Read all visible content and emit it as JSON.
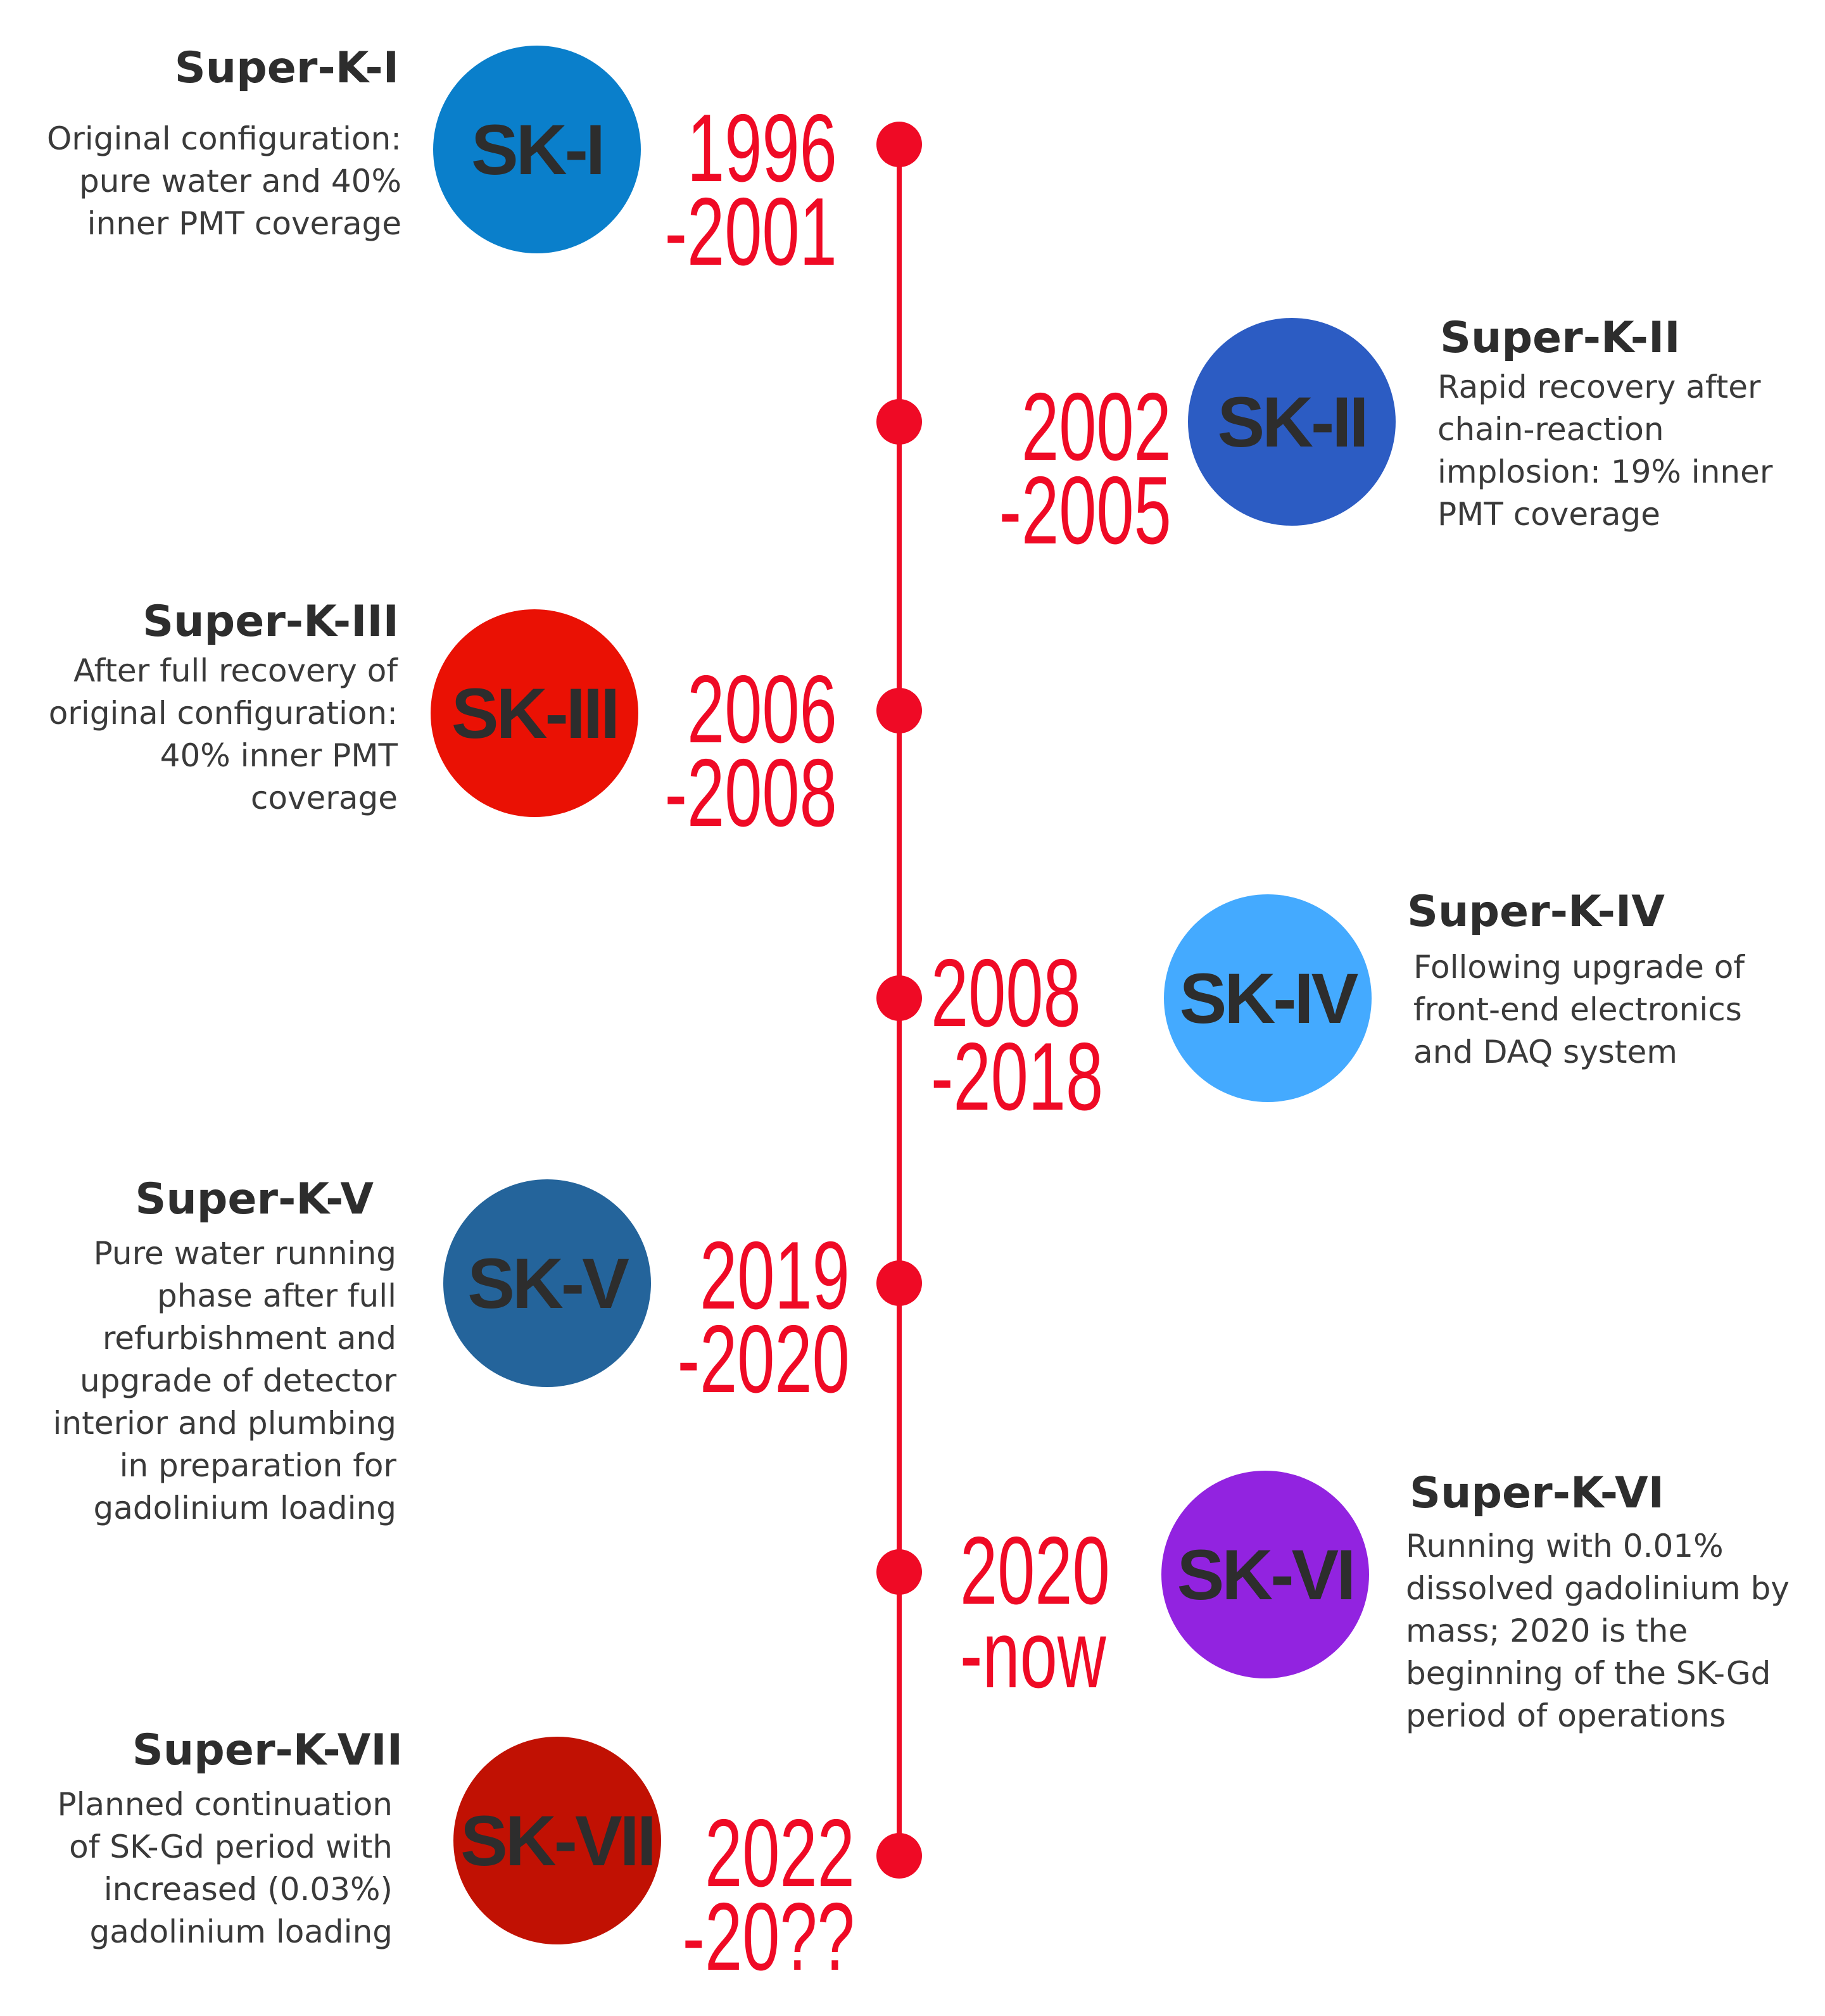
{
  "colors": {
    "timeline": "#ef0a25",
    "sk1": "#0a7fcb",
    "sk2": "#2c5cc3",
    "sk3": "#ea1104",
    "sk4": "#44aaff",
    "sk5": "#24649b",
    "sk6": "#9223e0",
    "sk7": "#c11103"
  },
  "phases": [
    {
      "label": "SK-I",
      "title": "Super-K-I",
      "years": [
        "1996",
        "-2001"
      ],
      "description": [
        "Original configuration:",
        "pure water and 40%",
        "inner PMT coverage"
      ]
    },
    {
      "label": "SK-II",
      "title": "Super-K-II",
      "years": [
        "2002",
        "-2005"
      ],
      "description": [
        "Rapid recovery after",
        "chain-reaction",
        "implosion: 19% inner",
        "PMT coverage"
      ]
    },
    {
      "label": "SK-III",
      "title": "Super-K-III",
      "years": [
        "2006",
        "-2008"
      ],
      "description": [
        "After full recovery of",
        "original configuration:",
        "40% inner PMT",
        "coverage"
      ]
    },
    {
      "label": "SK-IV",
      "title": "Super-K-IV",
      "years": [
        "2008",
        "-2018"
      ],
      "description": [
        "Following upgrade of",
        "front-end electronics",
        "and DAQ system"
      ]
    },
    {
      "label": "SK-V",
      "title": "Super-K-V",
      "years": [
        "2019",
        "-2020"
      ],
      "description": [
        "Pure water running",
        "phase after full",
        "refurbishment and",
        "upgrade of detector",
        "interior and plumbing",
        "in preparation for",
        "gadolinium loading"
      ]
    },
    {
      "label": "SK-VI",
      "title": "Super-K-VI",
      "years": [
        "2020",
        "-now"
      ],
      "description": [
        "Running with 0.01%",
        "dissolved gadolinium by",
        "mass; 2020 is the",
        "beginning of the SK-Gd",
        "period of operations"
      ]
    },
    {
      "label": "SK-VII",
      "title": "Super-K-VII",
      "years": [
        "2022",
        "-20??"
      ],
      "description": [
        "Planned continuation",
        "of SK-Gd period with",
        "increased (0.03%)",
        "gadolinium loading"
      ]
    }
  ]
}
